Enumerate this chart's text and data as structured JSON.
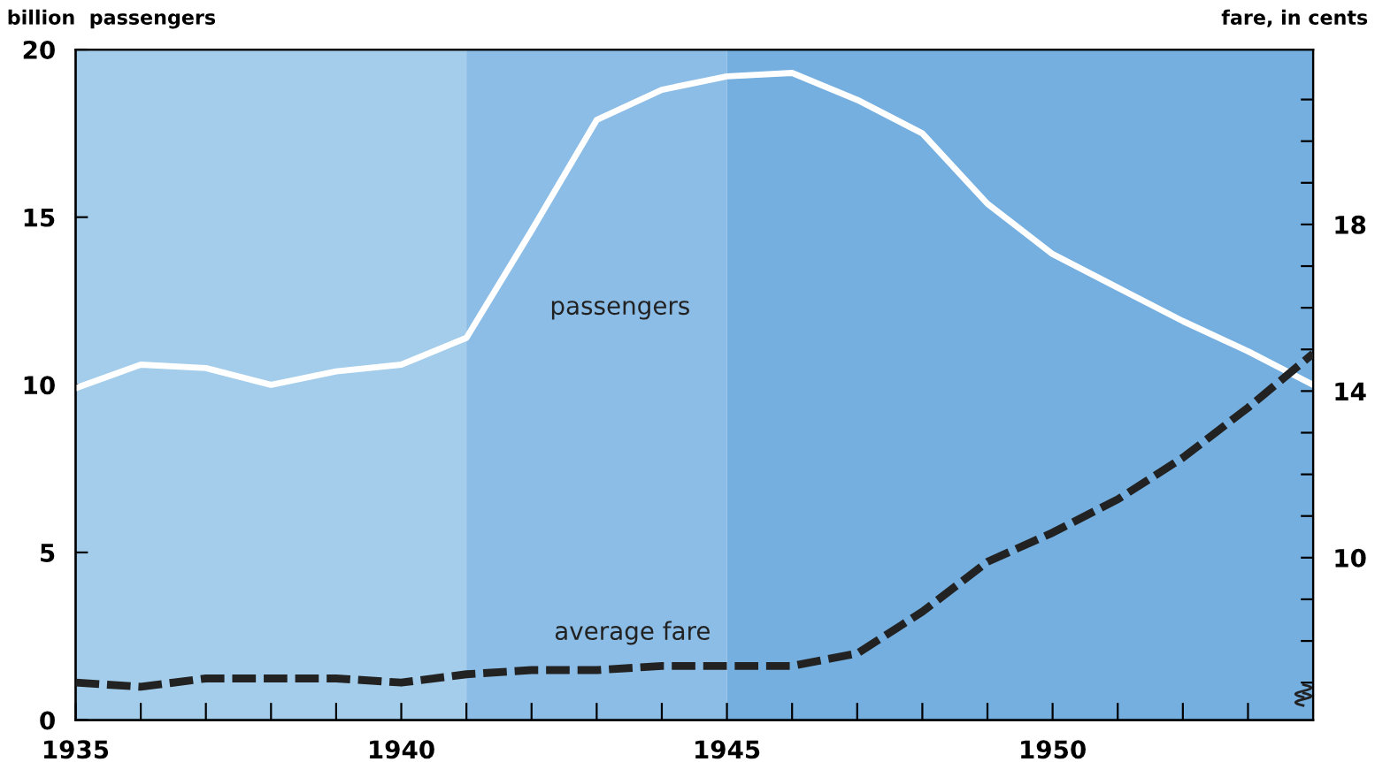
{
  "chart_data": {
    "type": "line",
    "ylabel": "billion  passengers",
    "y2label": "fare, in cents",
    "x": [
      1935,
      1936,
      1937,
      1938,
      1939,
      1940,
      1941,
      1942,
      1943,
      1944,
      1945,
      1946,
      1947,
      1948,
      1949,
      1950,
      1951,
      1952,
      1953,
      1954
    ],
    "series": [
      {
        "color": "#ffffff",
        "line_style": "solid",
        "axis": "y",
        "values": [
          9.9,
          10.6,
          10.5,
          10.0,
          10.4,
          10.6,
          11.4,
          14.6,
          17.9,
          18.8,
          19.2,
          19.3,
          18.5,
          17.5,
          15.4,
          13.9,
          12.9,
          11.9,
          11.0,
          10.0
        ]
      },
      {
        "color": "#222222",
        "line_style": "dashed",
        "axis": "y2",
        "values": [
          7.0,
          6.9,
          7.1,
          7.1,
          7.1,
          7.0,
          7.2,
          7.3,
          7.3,
          7.4,
          7.4,
          7.4,
          7.7,
          8.7,
          9.9,
          10.6,
          11.4,
          12.4,
          13.6,
          14.9
        ]
      }
    ],
    "xlim": [
      1935,
      1954
    ],
    "xticks": [
      1935,
      {
        "value": 1936,
        "label": null
      },
      {
        "value": 1937,
        "label": null
      },
      {
        "value": 1938,
        "label": null
      },
      {
        "value": 1939,
        "label": null
      },
      1940,
      {
        "value": 1941,
        "label": null
      },
      {
        "value": 1942,
        "label": null
      },
      {
        "value": 1943,
        "label": null
      },
      {
        "value": 1944,
        "label": null
      },
      1945,
      {
        "value": 1946,
        "label": null
      },
      {
        "value": 1947,
        "label": null
      },
      {
        "value": 1948,
        "label": null
      },
      {
        "value": 1949,
        "label": null
      },
      1950,
      {
        "value": 1951,
        "label": null
      },
      {
        "value": 1952,
        "label": null
      },
      {
        "value": 1953,
        "label": null
      }
    ],
    "ylim": [
      0,
      20
    ],
    "yticks": [
      0,
      5,
      10,
      15,
      20
    ],
    "y2lim": [
      6.1,
      22.2
    ],
    "y2ticks": [
      {
        "value": 7,
        "label": null
      },
      {
        "value": 8,
        "label": null
      },
      {
        "value": 9,
        "label": null
      },
      10,
      {
        "value": 11,
        "label": null
      },
      {
        "value": 12,
        "label": null
      },
      {
        "value": 13,
        "label": null
      },
      14,
      {
        "value": 15,
        "label": null
      },
      {
        "value": 16,
        "label": null
      },
      {
        "value": 17,
        "label": null
      },
      18,
      {
        "value": 19,
        "label": null
      },
      {
        "value": 20,
        "label": null
      },
      {
        "value": 21,
        "label": null
      }
    ],
    "bands": [
      {
        "axis": "x",
        "from": 1935,
        "to": 1941,
        "color": "#a3cdea"
      },
      {
        "axis": "x",
        "from": 1941,
        "to": 1945,
        "color": "#8cbde6"
      },
      {
        "axis": "x",
        "from": 1945,
        "to": 1954,
        "color": "#74afe0"
      }
    ],
    "annotations": [
      "passengers",
      "average fare"
    ],
    "grid": false,
    "legend": false,
    "marker": "none"
  }
}
